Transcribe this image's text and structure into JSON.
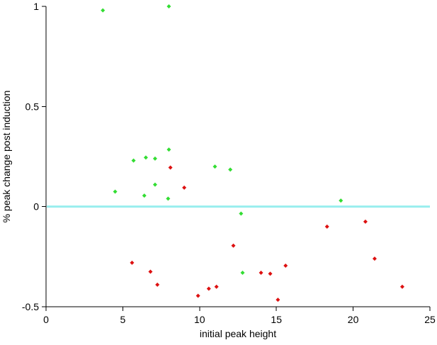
{
  "chart_data": {
    "type": "scatter",
    "title": "",
    "xlabel": "initial peak height",
    "ylabel": "% peak change post induction",
    "xlim": [
      0,
      25
    ],
    "ylim": [
      -0.5,
      1
    ],
    "xticks": [
      {
        "value": 0,
        "label": "0"
      },
      {
        "value": 5,
        "label": "5"
      },
      {
        "value": 10,
        "label": "10"
      },
      {
        "value": 15,
        "label": "15"
      },
      {
        "value": 20,
        "label": "20"
      },
      {
        "value": 25,
        "label": "25"
      }
    ],
    "yticks": [
      {
        "value": -0.5,
        "label": "-0.5"
      },
      {
        "value": 0,
        "label": "0"
      },
      {
        "value": 0.5,
        "label": "0.5"
      },
      {
        "value": 1,
        "label": "1"
      }
    ],
    "grid": false,
    "legend": "none",
    "reference_line": {
      "y": 0,
      "color": "#99eeee"
    },
    "series": [
      {
        "color": "#33dd33",
        "points": [
          {
            "x": 3.7,
            "y": 0.98
          },
          {
            "x": 8.0,
            "y": 1.0
          },
          {
            "x": 5.7,
            "y": 0.23
          },
          {
            "x": 6.5,
            "y": 0.245
          },
          {
            "x": 7.1,
            "y": 0.24
          },
          {
            "x": 8.0,
            "y": 0.285
          },
          {
            "x": 11.0,
            "y": 0.2
          },
          {
            "x": 12.0,
            "y": 0.185
          },
          {
            "x": 4.5,
            "y": 0.075
          },
          {
            "x": 6.4,
            "y": 0.055
          },
          {
            "x": 7.1,
            "y": 0.11
          },
          {
            "x": 7.95,
            "y": 0.04
          },
          {
            "x": 12.7,
            "y": -0.035
          },
          {
            "x": 19.2,
            "y": 0.03
          },
          {
            "x": 12.8,
            "y": -0.33
          }
        ]
      },
      {
        "color": "#dd1111",
        "points": [
          {
            "x": 8.1,
            "y": 0.195
          },
          {
            "x": 9.0,
            "y": 0.095
          },
          {
            "x": 5.6,
            "y": -0.28
          },
          {
            "x": 6.8,
            "y": -0.325
          },
          {
            "x": 7.25,
            "y": -0.39
          },
          {
            "x": 9.9,
            "y": -0.445
          },
          {
            "x": 10.6,
            "y": -0.41
          },
          {
            "x": 11.1,
            "y": -0.4
          },
          {
            "x": 12.2,
            "y": -0.195
          },
          {
            "x": 14.0,
            "y": -0.33
          },
          {
            "x": 14.6,
            "y": -0.335
          },
          {
            "x": 15.1,
            "y": -0.465
          },
          {
            "x": 15.6,
            "y": -0.295
          },
          {
            "x": 18.3,
            "y": -0.1
          },
          {
            "x": 20.8,
            "y": -0.075
          },
          {
            "x": 21.4,
            "y": -0.26
          },
          {
            "x": 23.2,
            "y": -0.4
          }
        ]
      }
    ]
  }
}
